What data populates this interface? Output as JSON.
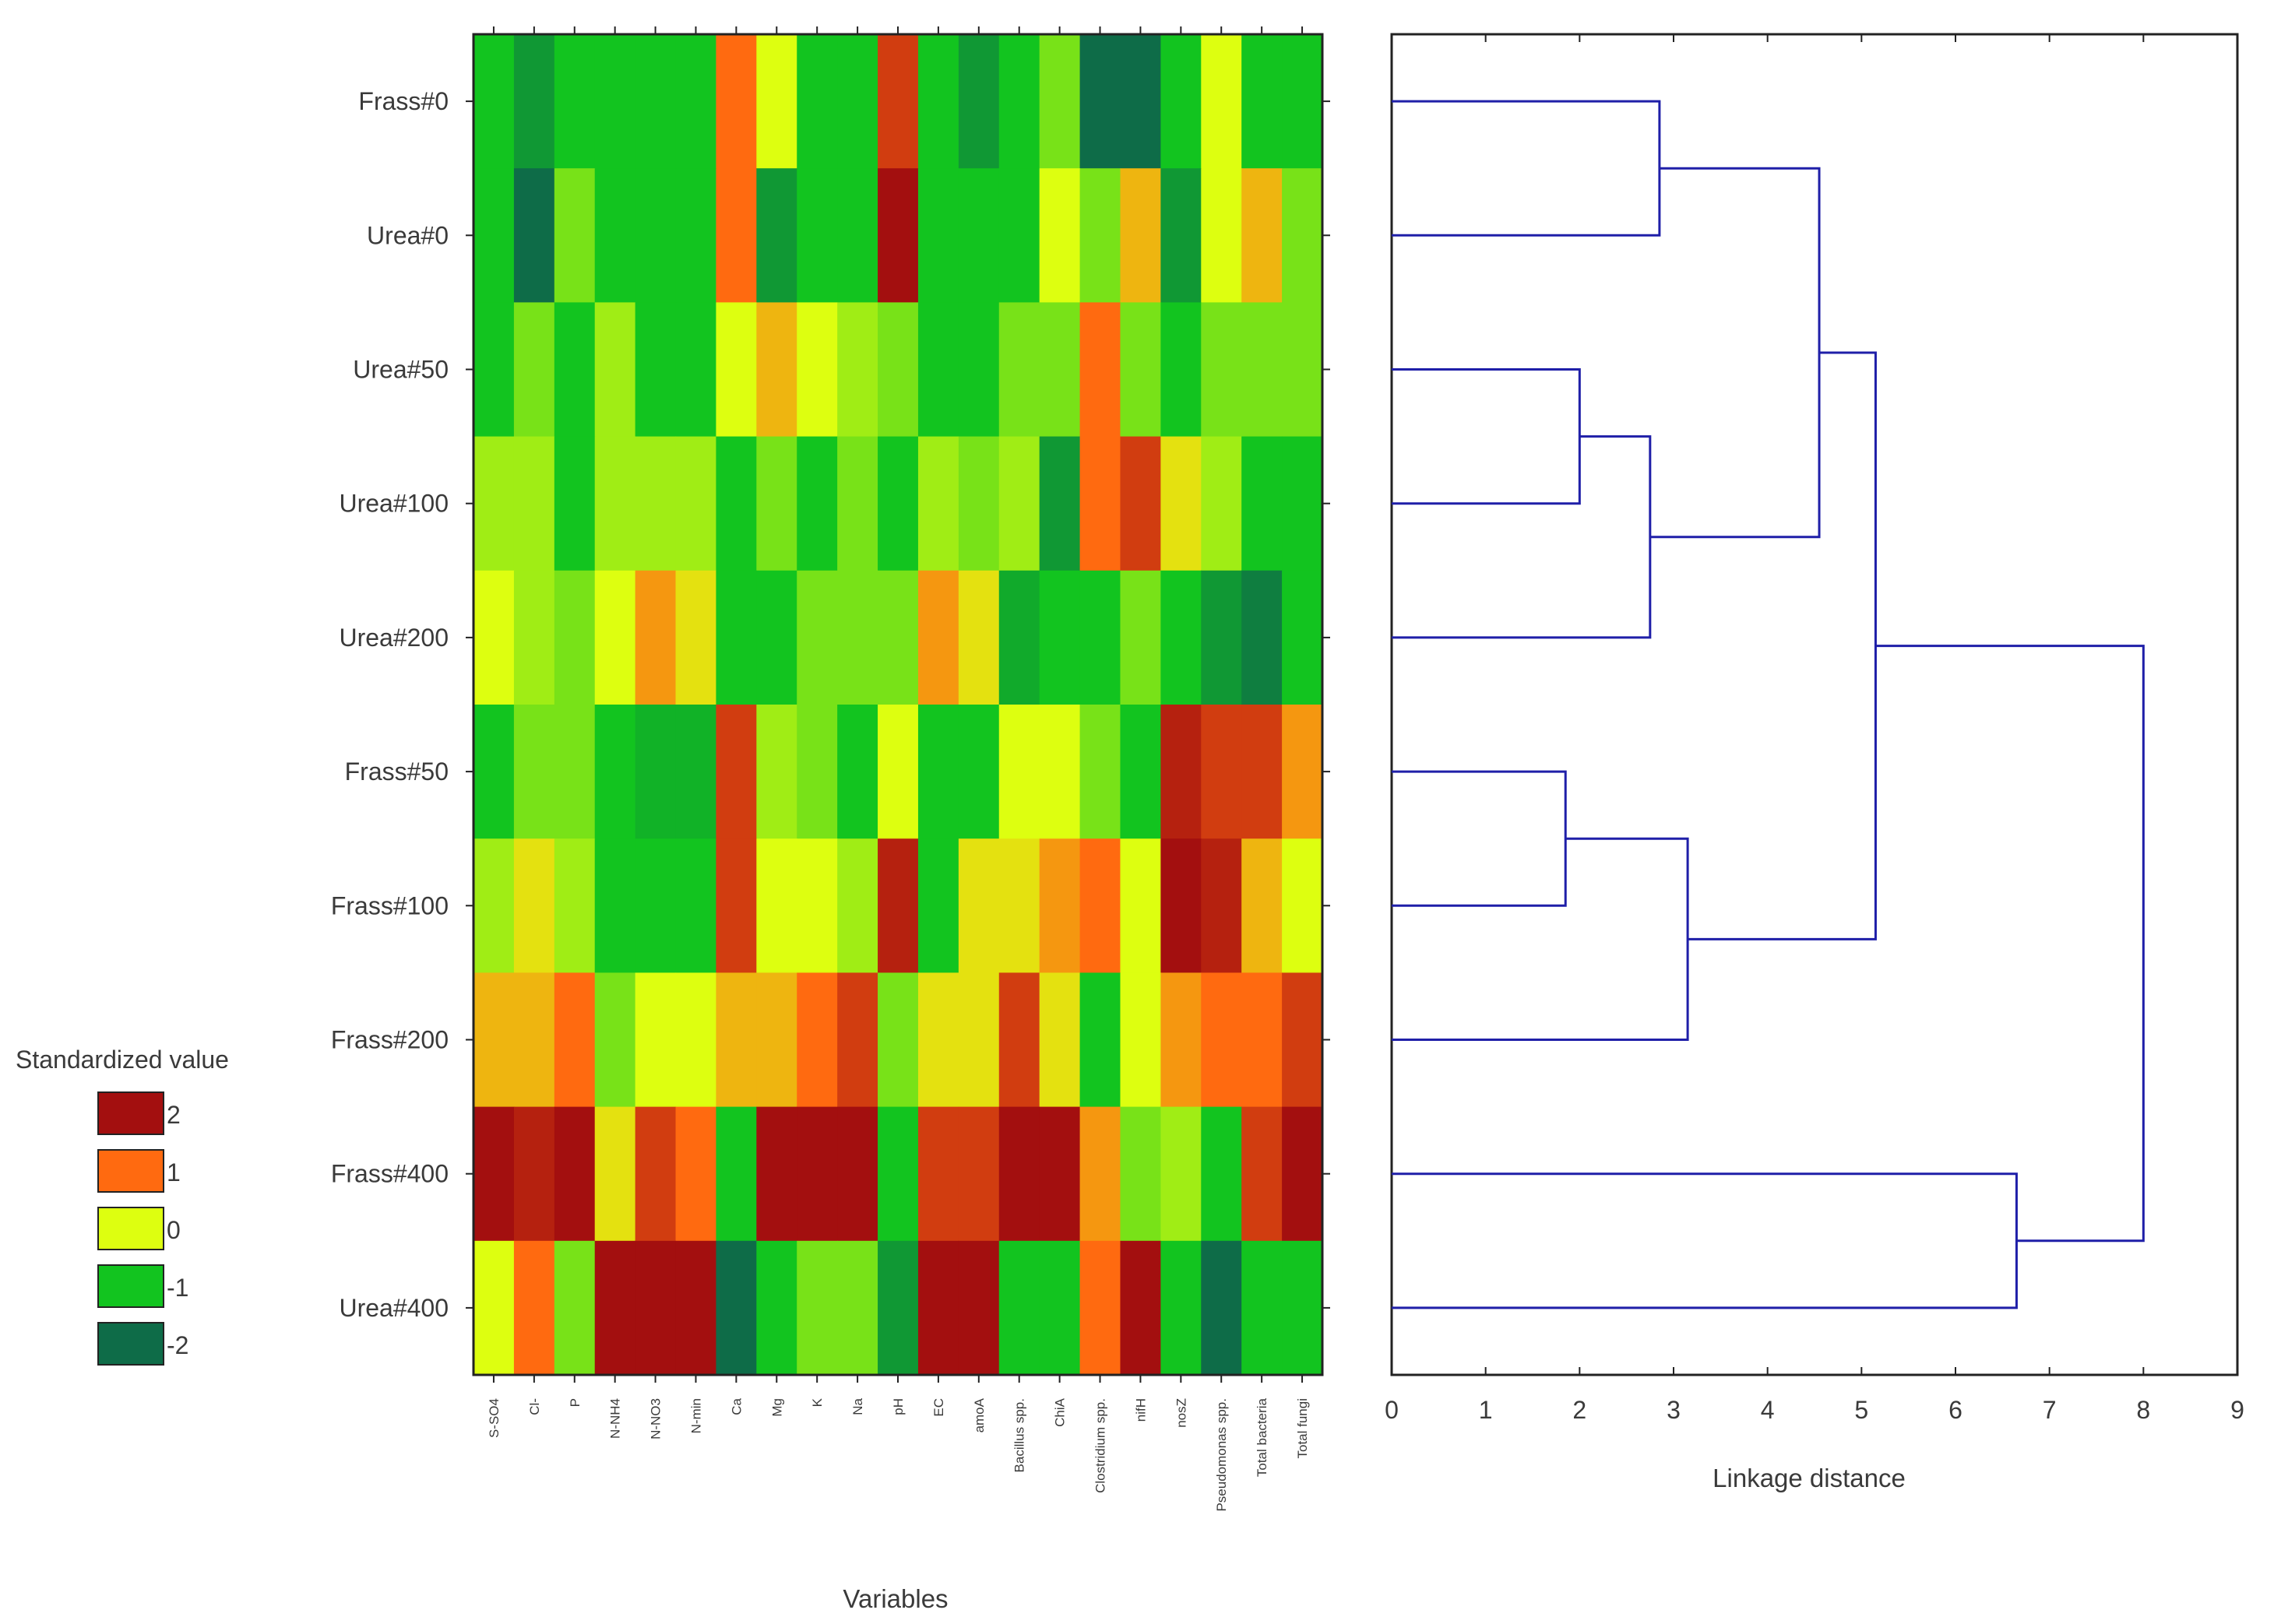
{
  "chart_data": [
    {
      "type": "heatmap",
      "xlabel": "Variables",
      "rows": [
        "Frass#0",
        "Urea#0",
        "Urea#50",
        "Urea#100",
        "Urea#200",
        "Frass#50",
        "Frass#100",
        "Frass#200",
        "Frass#400",
        "Urea#400"
      ],
      "columns": [
        "S-SO4",
        "Cl-",
        "P",
        "N-NH4",
        "N-NO3",
        "N-min",
        "Ca",
        "Mg",
        "K",
        "Na",
        "pH",
        "EC",
        "amoA",
        "Bacillus spp.",
        "ChiA",
        "Clostridium spp.",
        "nifH",
        "nosZ",
        "Pseudomonas spp.",
        "Total bacteria",
        "Total fungi"
      ],
      "values": [
        [
          -1,
          -1.5,
          -1,
          -1,
          -1,
          -1,
          1,
          0,
          -1,
          -1,
          1.5,
          -1,
          -1.5,
          -1,
          -0.5,
          -2,
          -2,
          -1,
          0,
          -1,
          -1
        ],
        [
          -1,
          -2,
          -0.5,
          -1,
          -1,
          -1,
          1,
          -1.5,
          -1,
          -1,
          2,
          -1,
          -1,
          -1,
          0,
          -0.5,
          0.5,
          -1.5,
          0,
          0.5,
          -0.5
        ],
        [
          -1,
          -0.5,
          -1,
          -0.3,
          -1,
          -1,
          0,
          0.5,
          0,
          -0.3,
          -0.5,
          -1,
          -1,
          -0.5,
          -0.5,
          1,
          -0.5,
          -1,
          -0.5,
          -0.5,
          -0.5
        ],
        [
          -0.3,
          -0.3,
          -1,
          -0.3,
          -0.3,
          -0.3,
          -1,
          -0.5,
          -1,
          -0.5,
          -1,
          -0.3,
          -0.5,
          -0.3,
          -1.5,
          1,
          1.5,
          0.2,
          -0.3,
          -1,
          -1
        ],
        [
          0,
          -0.3,
          -0.5,
          0,
          0.7,
          0.2,
          -1,
          -1,
          -0.5,
          -0.5,
          -0.5,
          0.7,
          0.2,
          -1.3,
          -1,
          -1,
          -0.5,
          -1,
          -1.5,
          -1.8,
          -1
        ],
        [
          -1,
          -0.5,
          -0.5,
          -1,
          -1.2,
          -1.2,
          1.5,
          -0.3,
          -0.5,
          -1,
          0,
          -1,
          -1,
          0,
          0,
          -0.5,
          -1,
          1.8,
          1.5,
          1.5,
          0.7
        ],
        [
          -0.3,
          0.2,
          -0.3,
          -1,
          -1,
          -1,
          1.5,
          0,
          0,
          -0.3,
          1.8,
          -1,
          0.2,
          0.2,
          0.7,
          1,
          0,
          2,
          1.8,
          0.5,
          0
        ],
        [
          0.5,
          0.5,
          1,
          -0.5,
          0,
          0,
          0.5,
          0.5,
          1,
          1.5,
          -0.5,
          0.2,
          0.2,
          1.5,
          0.2,
          -1,
          0,
          0.7,
          1,
          1,
          1.5
        ],
        [
          2.2,
          1.8,
          2.2,
          0.2,
          1.5,
          1,
          -1,
          2,
          2,
          2,
          -1,
          1.5,
          1.5,
          2,
          2,
          0.7,
          -0.5,
          -0.3,
          -1,
          1.5,
          2.2
        ],
        [
          0,
          1,
          -0.5,
          2.2,
          2,
          2,
          -2,
          -1,
          -0.5,
          -0.5,
          -1.5,
          2,
          2,
          -1,
          -1,
          1,
          2,
          -1,
          -2,
          -1,
          -1
        ]
      ],
      "color_scale": [
        {
          "value": 2,
          "label": "2",
          "color": "#a30f0f"
        },
        {
          "value": 1,
          "label": "1",
          "color": "#ff6a10"
        },
        {
          "value": 0,
          "label": "0",
          "color": "#ddff10"
        },
        {
          "value": -1,
          "label": "-1",
          "color": "#12c41f"
        },
        {
          "value": -2,
          "label": "-2",
          "color": "#0e6c48"
        }
      ],
      "legend": {
        "title": "Standardized value",
        "placement": "left"
      }
    },
    {
      "type": "dendrogram",
      "xlabel": "Linkage distance",
      "xlim": [
        0,
        9
      ],
      "xticks": [
        "0",
        "1",
        "2",
        "3",
        "4",
        "5",
        "6",
        "7",
        "8",
        "9"
      ],
      "leaf_order": [
        "Frass#0",
        "Urea#0",
        "Urea#50",
        "Urea#100",
        "Urea#200",
        "Frass#50",
        "Frass#100",
        "Frass#200",
        "Frass#400",
        "Urea#400"
      ],
      "merges": [
        {
          "left": [
            "Frass#0"
          ],
          "right": [
            "Urea#0"
          ],
          "distance": 2.85
        },
        {
          "left": [
            "Urea#50"
          ],
          "right": [
            "Urea#100"
          ],
          "distance": 2.0
        },
        {
          "left": [
            "Urea#50",
            "Urea#100"
          ],
          "right": [
            "Urea#200"
          ],
          "distance": 2.75
        },
        {
          "left": [
            "Frass#0",
            "Urea#0"
          ],
          "right": [
            "Urea#50",
            "Urea#100",
            "Urea#200"
          ],
          "distance": 4.55
        },
        {
          "left": [
            "Frass#50"
          ],
          "right": [
            "Frass#100"
          ],
          "distance": 1.85
        },
        {
          "left": [
            "Frass#50",
            "Frass#100"
          ],
          "right": [
            "Frass#200"
          ],
          "distance": 3.15
        },
        {
          "left": [
            "Frass#0",
            "Urea#0",
            "Urea#50",
            "Urea#100",
            "Urea#200"
          ],
          "right": [
            "Frass#50",
            "Frass#100",
            "Frass#200"
          ],
          "distance": 5.15
        },
        {
          "left": [
            "Frass#400"
          ],
          "right": [
            "Urea#400"
          ],
          "distance": 6.65
        },
        {
          "left": [
            "Frass#0",
            "Urea#0",
            "Urea#50",
            "Urea#100",
            "Urea#200",
            "Frass#50",
            "Frass#100",
            "Frass#200"
          ],
          "right": [
            "Frass#400",
            "Urea#400"
          ],
          "distance": 8.0
        }
      ]
    }
  ]
}
